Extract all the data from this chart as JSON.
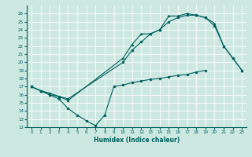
{
  "xlabel": "Humidex (Indice chaleur)",
  "bg_color": "#cce8e0",
  "grid_color": "#ffffff",
  "line_color": "#006060",
  "xlim": [
    -0.5,
    23.5
  ],
  "ylim": [
    12,
    27
  ],
  "xticks": [
    0,
    1,
    2,
    3,
    4,
    5,
    6,
    7,
    8,
    9,
    10,
    11,
    12,
    13,
    14,
    15,
    16,
    17,
    18,
    19,
    20,
    21,
    22,
    23
  ],
  "yticks": [
    12,
    13,
    14,
    15,
    16,
    17,
    18,
    19,
    20,
    21,
    22,
    23,
    24,
    25,
    26
  ],
  "series": [
    {
      "x": [
        0,
        1,
        2,
        3,
        4,
        10,
        11,
        12,
        13,
        14,
        15,
        16,
        17,
        18,
        19,
        20,
        21,
        22,
        23
      ],
      "y": [
        17.0,
        16.5,
        16.0,
        15.8,
        15.3,
        20.5,
        22.2,
        23.5,
        23.5,
        24.0,
        25.7,
        25.7,
        26.0,
        25.8,
        25.5,
        24.8,
        22.0,
        20.5,
        19.0
      ],
      "marker": "^"
    },
    {
      "x": [
        0,
        1,
        2,
        3,
        4,
        10,
        11,
        12,
        13,
        14,
        15,
        16,
        17,
        18,
        19,
        20,
        21,
        22,
        23
      ],
      "y": [
        17.0,
        16.5,
        16.2,
        15.8,
        15.5,
        20.0,
        21.5,
        22.5,
        23.5,
        24.0,
        25.0,
        25.5,
        25.8,
        25.8,
        25.5,
        24.5,
        22.0,
        20.5,
        19.0
      ],
      "marker": "o"
    },
    {
      "x": [
        0,
        1,
        2,
        3,
        4,
        5,
        6,
        7,
        8,
        9,
        10,
        11,
        12,
        13,
        14,
        15,
        16,
        17,
        18,
        19
      ],
      "y": [
        17.0,
        16.5,
        16.0,
        15.5,
        14.3,
        13.5,
        12.8,
        12.2,
        13.5,
        17.0,
        17.2,
        17.5,
        17.7,
        17.9,
        18.0,
        18.2,
        18.4,
        18.5,
        18.8,
        19.0
      ],
      "marker": "o"
    }
  ]
}
